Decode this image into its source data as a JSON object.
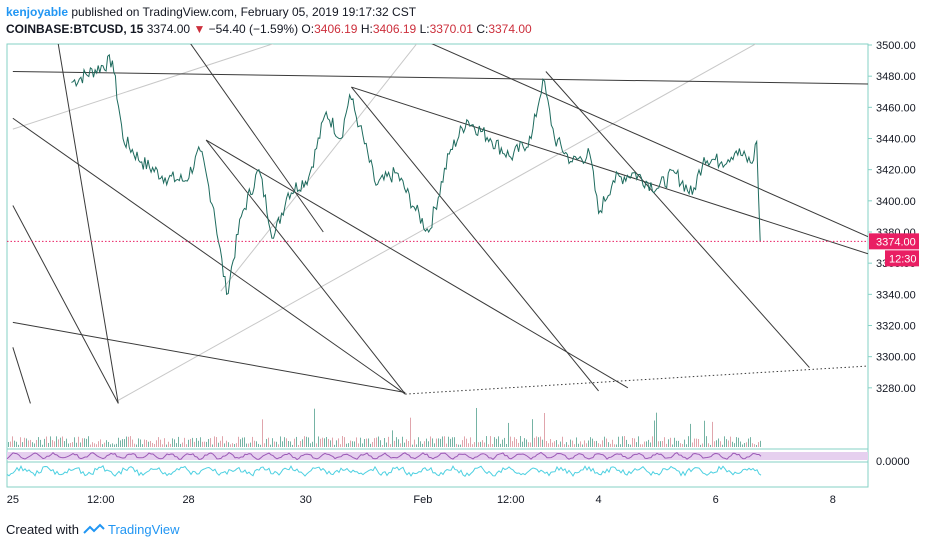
{
  "header": {
    "author": "kenjoyable",
    "published_text": "published on TradingView.com, February 05, 2019 19:17:32 CST"
  },
  "ohlc": {
    "symbol": "COINBASE:BTCUSD, 15",
    "last": "3374.00",
    "arrow": "▼",
    "change": "−54.40 (−1.59%)",
    "o_label": "O:",
    "o_value": "3406.19",
    "h_label": "H:",
    "h_value": "3406.19",
    "l_label": "L:",
    "l_value": "3370.01",
    "c_label": "C:",
    "c_value": "3374.00"
  },
  "footer": {
    "created_with": "Created with",
    "brand": "TradingView"
  },
  "colors": {
    "price_line": "#1e6b5e",
    "price_marker": "#e91e63",
    "accent_blue": "#2196f3",
    "trendline": "#3a3a3a",
    "fan_line": "#c8c8c8",
    "volume_up": "#75b3a4",
    "volume_down": "#e0a5ac",
    "rsi_band": "#e6d0ef",
    "rsi_line": "#9b59b6",
    "osc_line": "#4dd0e1"
  },
  "chart_data": {
    "type": "line",
    "ylim": [
      3260,
      3500
    ],
    "y_ticks": [
      "3500.00",
      "3480.00",
      "3460.00",
      "3440.00",
      "3420.00",
      "3400.00",
      "3380.00",
      "3360.00",
      "3340.00",
      "3320.00",
      "3300.00",
      "3280.00"
    ],
    "x_ticks": [
      "25",
      "12:00",
      "28",
      "30",
      "Feb",
      "12:00",
      "4",
      "6",
      "8"
    ],
    "x_tick_days": [
      25.0,
      26.5,
      28.0,
      30.0,
      32.0,
      33.5,
      35.0,
      37.0,
      39.0
    ],
    "xlim": [
      24.9,
      39.6
    ],
    "last_price_label": "3374.00",
    "countdown_label": "12:30",
    "oscillator_zero_label": "0.0000",
    "price_keypoints": [
      {
        "x": 26.0,
        "y": 3476
      },
      {
        "x": 26.7,
        "y": 3490
      },
      {
        "x": 26.88,
        "y": 3440
      },
      {
        "x": 27.2,
        "y": 3425
      },
      {
        "x": 27.6,
        "y": 3415
      },
      {
        "x": 27.95,
        "y": 3413
      },
      {
        "x": 28.2,
        "y": 3432
      },
      {
        "x": 28.43,
        "y": 3395
      },
      {
        "x": 28.65,
        "y": 3340
      },
      {
        "x": 28.9,
        "y": 3390
      },
      {
        "x": 29.2,
        "y": 3420
      },
      {
        "x": 29.45,
        "y": 3376
      },
      {
        "x": 29.7,
        "y": 3405
      },
      {
        "x": 30.05,
        "y": 3415
      },
      {
        "x": 30.35,
        "y": 3457
      },
      {
        "x": 30.6,
        "y": 3440
      },
      {
        "x": 30.75,
        "y": 3468
      },
      {
        "x": 30.92,
        "y": 3448
      },
      {
        "x": 31.2,
        "y": 3410
      },
      {
        "x": 31.55,
        "y": 3418
      },
      {
        "x": 31.85,
        "y": 3396
      },
      {
        "x": 32.1,
        "y": 3380
      },
      {
        "x": 32.45,
        "y": 3430
      },
      {
        "x": 32.75,
        "y": 3452
      },
      {
        "x": 33.15,
        "y": 3440
      },
      {
        "x": 33.5,
        "y": 3428
      },
      {
        "x": 33.85,
        "y": 3440
      },
      {
        "x": 34.05,
        "y": 3478
      },
      {
        "x": 34.25,
        "y": 3440
      },
      {
        "x": 34.55,
        "y": 3425
      },
      {
        "x": 34.85,
        "y": 3430
      },
      {
        "x": 35.0,
        "y": 3392
      },
      {
        "x": 35.25,
        "y": 3413
      },
      {
        "x": 35.6,
        "y": 3418
      },
      {
        "x": 36.0,
        "y": 3408
      },
      {
        "x": 36.3,
        "y": 3418
      },
      {
        "x": 36.6,
        "y": 3404
      },
      {
        "x": 36.8,
        "y": 3428
      },
      {
        "x": 37.1,
        "y": 3425
      },
      {
        "x": 37.35,
        "y": 3432
      },
      {
        "x": 37.62,
        "y": 3424
      },
      {
        "x": 37.7,
        "y": 3438
      },
      {
        "x": 37.76,
        "y": 3374
      }
    ],
    "trendlines_dark": [
      {
        "x1": 25.0,
        "y1": 3483,
        "x2": 39.6,
        "y2": 3475
      },
      {
        "x1": 25.0,
        "y1": 3453,
        "x2": 31.7,
        "y2": 3276
      },
      {
        "x1": 25.0,
        "y1": 3397,
        "x2": 26.8,
        "y2": 3270
      },
      {
        "x1": 25.0,
        "y1": 3322,
        "x2": 31.7,
        "y2": 3277
      },
      {
        "x1": 25.0,
        "y1": 3306,
        "x2": 25.3,
        "y2": 3270
      },
      {
        "x1": 25.6,
        "y1": 3540,
        "x2": 26.8,
        "y2": 3270
      },
      {
        "x1": 27.3,
        "y1": 3540,
        "x2": 30.3,
        "y2": 3380
      },
      {
        "x1": 28.3,
        "y1": 3439,
        "x2": 31.7,
        "y2": 3276
      },
      {
        "x1": 30.78,
        "y1": 3473,
        "x2": 35.0,
        "y2": 3278
      },
      {
        "x1": 30.78,
        "y1": 3473,
        "x2": 39.6,
        "y2": 3366
      },
      {
        "x1": 28.3,
        "y1": 3439,
        "x2": 35.5,
        "y2": 3280
      },
      {
        "x1": 31.0,
        "y1": 3520,
        "x2": 39.6,
        "y2": 3377
      },
      {
        "x1": 34.1,
        "y1": 3483,
        "x2": 38.6,
        "y2": 3293
      }
    ],
    "trendlines_light": [
      {
        "x1": 25.0,
        "y1": 3446,
        "x2": 31.0,
        "y2": 3520
      },
      {
        "x1": 28.55,
        "y1": 3342,
        "x2": 32.3,
        "y2": 3520
      },
      {
        "x1": 26.8,
        "y1": 3272,
        "x2": 38.6,
        "y2": 3520
      }
    ],
    "dotted_trend": {
      "x1": 31.7,
      "y1": 3276,
      "x2": 39.6,
      "y2": 3294
    }
  }
}
